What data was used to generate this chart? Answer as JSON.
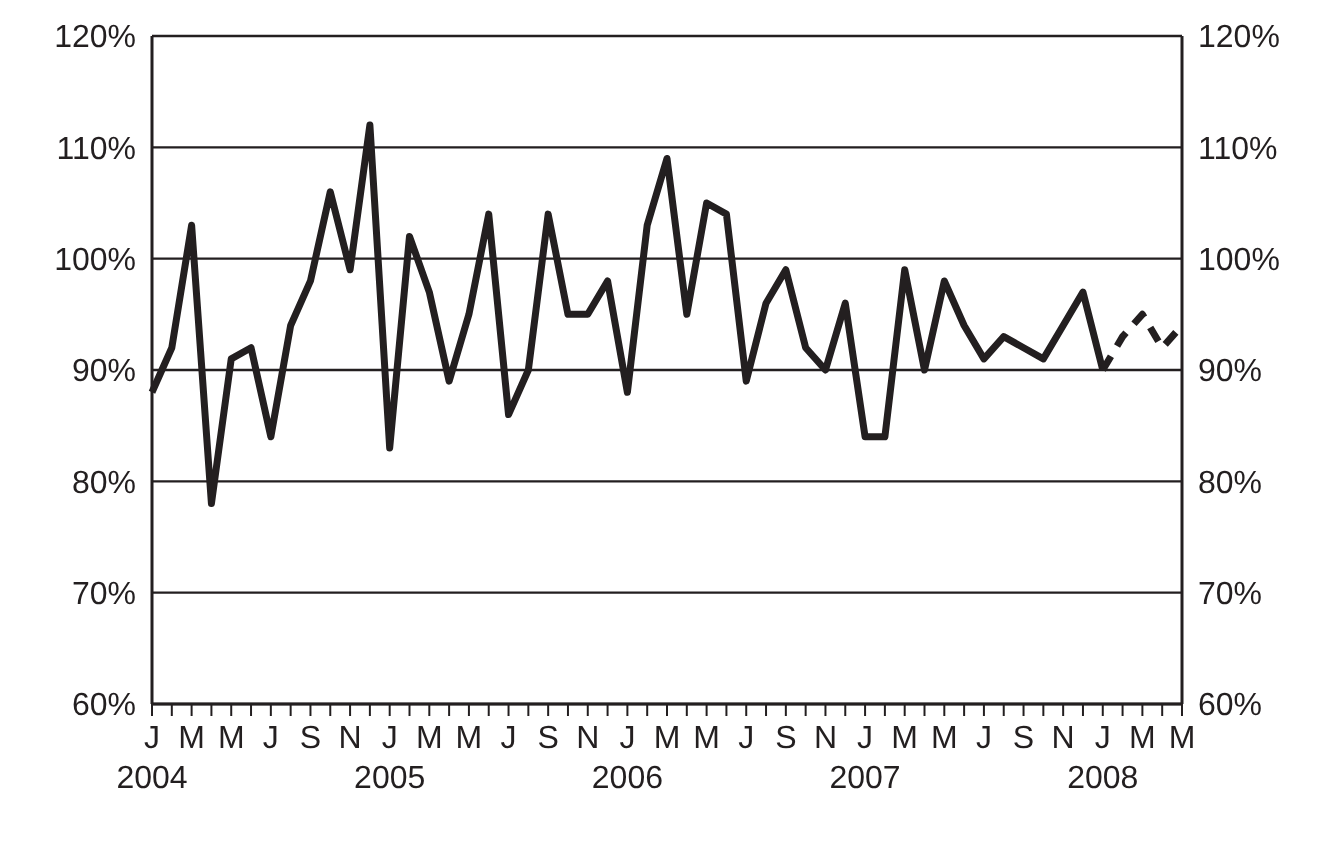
{
  "chart_data": {
    "type": "line",
    "categories": [
      "J\n2004",
      null,
      "M",
      null,
      "M",
      null,
      "J",
      null,
      "S",
      null,
      "N",
      null,
      "J\n2005",
      null,
      "M",
      null,
      "M",
      null,
      "J",
      null,
      "S",
      null,
      "N",
      null,
      "J\n2006",
      null,
      "M",
      null,
      "M",
      null,
      "J",
      null,
      "S",
      null,
      "N",
      null,
      "J\n2007",
      null,
      "M",
      null,
      "M",
      null,
      "J",
      null,
      "S",
      null,
      "N",
      null,
      "J\n2008",
      null,
      "M",
      null,
      "M"
    ],
    "series": [
      {
        "color": "#231f20",
        "line_style": "solid",
        "values": [
          88,
          92,
          103,
          78,
          91,
          92,
          84,
          94,
          98,
          106,
          99,
          112,
          83,
          102,
          97,
          89,
          95,
          104,
          86,
          90,
          104,
          95,
          95,
          98,
          88,
          103,
          109,
          95,
          105,
          104,
          89,
          96,
          99,
          92,
          90,
          96,
          84,
          84,
          99,
          90,
          98,
          94,
          91,
          93,
          92,
          91,
          94,
          97,
          90,
          null,
          null,
          null,
          null
        ]
      },
      {
        "color": "#231f20",
        "line_style": "dashed",
        "values": [
          null,
          null,
          null,
          null,
          null,
          null,
          null,
          null,
          null,
          null,
          null,
          null,
          null,
          null,
          null,
          null,
          null,
          null,
          null,
          null,
          null,
          null,
          null,
          null,
          null,
          null,
          null,
          null,
          null,
          null,
          null,
          null,
          null,
          null,
          null,
          null,
          null,
          null,
          null,
          null,
          null,
          null,
          null,
          null,
          null,
          null,
          null,
          null,
          90,
          93,
          95,
          92,
          94
        ]
      }
    ],
    "ylim": [
      60,
      120
    ],
    "yticks": [
      {
        "value": 60,
        "label": "60%"
      },
      {
        "value": 70,
        "label": "70%"
      },
      {
        "value": 80,
        "label": "80%"
      },
      {
        "value": 90,
        "label": "90%"
      },
      {
        "value": 100,
        "label": "100%"
      },
      {
        "value": 110,
        "label": "110%"
      },
      {
        "value": 120,
        "label": "120%"
      }
    ],
    "y2lim": [
      60,
      120
    ],
    "y2ticks": [
      {
        "value": 60,
        "label": "60%"
      },
      {
        "value": 70,
        "label": "70%"
      },
      {
        "value": 80,
        "label": "80%"
      },
      {
        "value": 90,
        "label": "90%"
      },
      {
        "value": 100,
        "label": "100%"
      },
      {
        "value": 110,
        "label": "110%"
      },
      {
        "value": 120,
        "label": "120%"
      }
    ],
    "grid": "y",
    "marker": "none"
  }
}
